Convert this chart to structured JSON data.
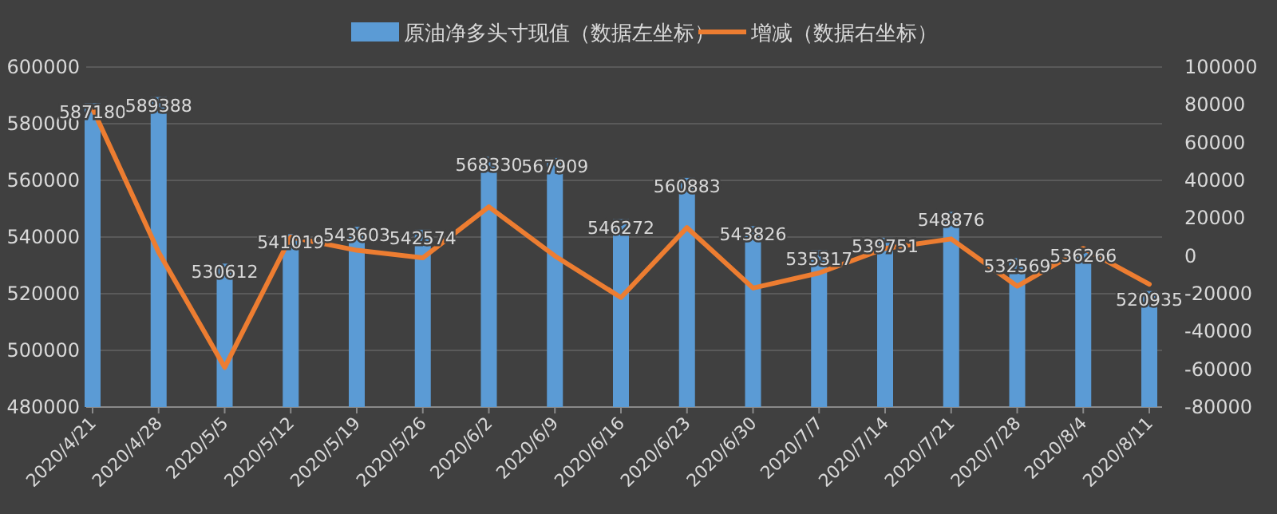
{
  "chart_data": {
    "type": "bar",
    "categories": [
      "2020/4/21",
      "2020/4/28",
      "2020/5/5",
      "2020/5/12",
      "2020/5/19",
      "2020/5/26",
      "2020/6/2",
      "2020/6/9",
      "2020/6/16",
      "2020/6/23",
      "2020/6/30",
      "2020/7/7",
      "2020/7/14",
      "2020/7/21",
      "2020/7/28",
      "2020/8/4",
      "2020/8/11"
    ],
    "series": [
      {
        "name": "原油净多头寸现值（数据左坐标）",
        "color": "#5b9bd5",
        "values": [
          587180,
          589388,
          530612,
          541019,
          543603,
          542574,
          568330,
          567909,
          546272,
          560883,
          543826,
          535317,
          539751,
          548876,
          532569,
          536266,
          520935
        ],
        "value_labels": [
          "587180",
          "589388",
          "530612",
          "541019",
          "543603",
          "542574",
          "568330",
          "567909",
          "546272",
          "560883",
          "543826",
          "535317",
          "539751",
          "548876",
          "532569",
          "536266",
          "520935"
        ]
      },
      {
        "name": "增减（数据右坐标）",
        "type": "line",
        "axis": "y2",
        "color": "#ed7d31",
        "values": [
          78000,
          2000,
          -59000,
          10000,
          3000,
          -1000,
          26000,
          0,
          -22000,
          15000,
          -17000,
          -9000,
          4000,
          9000,
          -16000,
          4000,
          -15000
        ]
      }
    ],
    "ylim": [
      480000,
      600000
    ],
    "yticks": [
      480000,
      500000,
      520000,
      540000,
      560000,
      580000,
      600000
    ],
    "y2lim": [
      -80000,
      100000
    ],
    "y2ticks": [
      -80000,
      -60000,
      -40000,
      -20000,
      0,
      20000,
      40000,
      60000,
      80000,
      100000
    ],
    "grid": "y",
    "legend": "top",
    "marker": "none",
    "line_style": "solid"
  }
}
